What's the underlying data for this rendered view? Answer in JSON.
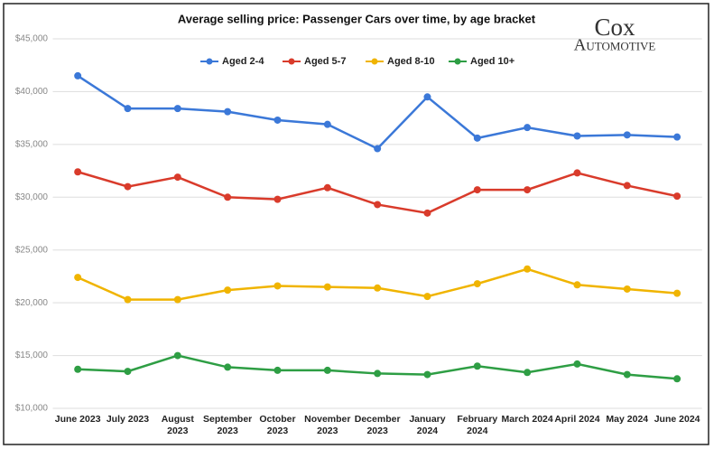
{
  "chart_data": {
    "type": "line",
    "title": "Average selling price: Passenger Cars over time, by age bracket",
    "logo": {
      "line1": "Cox",
      "line2": "Automotive"
    },
    "categories": [
      "June 2023",
      "July 2023",
      "August 2023",
      "September 2023",
      "October 2023",
      "November 2023",
      "December 2023",
      "January 2024",
      "February 2024",
      "March 2024",
      "April 2024",
      "May 2024",
      "June 2024"
    ],
    "series": [
      {
        "name": "Aged 2-4",
        "color": "#3b78d8",
        "values": [
          41500,
          38400,
          38400,
          38100,
          37300,
          36900,
          34600,
          39500,
          35600,
          36600,
          35800,
          35900,
          35700
        ]
      },
      {
        "name": "Aged 5-7",
        "color": "#d93b2b",
        "values": [
          32400,
          31000,
          31900,
          30000,
          29800,
          30900,
          29300,
          28500,
          30700,
          30700,
          32300,
          31100,
          30100
        ]
      },
      {
        "name": "Aged 8-10",
        "color": "#f0b400",
        "values": [
          22400,
          20300,
          20300,
          21200,
          21600,
          21500,
          21400,
          20600,
          21800,
          23200,
          21700,
          21300,
          20900
        ]
      },
      {
        "name": "Aged 10+",
        "color": "#2e9e44",
        "values": [
          13700,
          13500,
          15000,
          13900,
          13600,
          13600,
          13300,
          13200,
          14000,
          13400,
          14200,
          13200,
          12800
        ]
      }
    ],
    "ylim": [
      10000,
      45000
    ],
    "yticks": [
      {
        "value": 10000,
        "label": "$10,000"
      },
      {
        "value": 15000,
        "label": "$15,000"
      },
      {
        "value": 20000,
        "label": "$20,000"
      },
      {
        "value": 25000,
        "label": "$25,000"
      },
      {
        "value": 30000,
        "label": "$30,000"
      },
      {
        "value": 35000,
        "label": "$35,000"
      },
      {
        "value": 40000,
        "label": "$40,000"
      },
      {
        "value": 45000,
        "label": "$45,000"
      }
    ],
    "grid": true,
    "legend": "top"
  }
}
